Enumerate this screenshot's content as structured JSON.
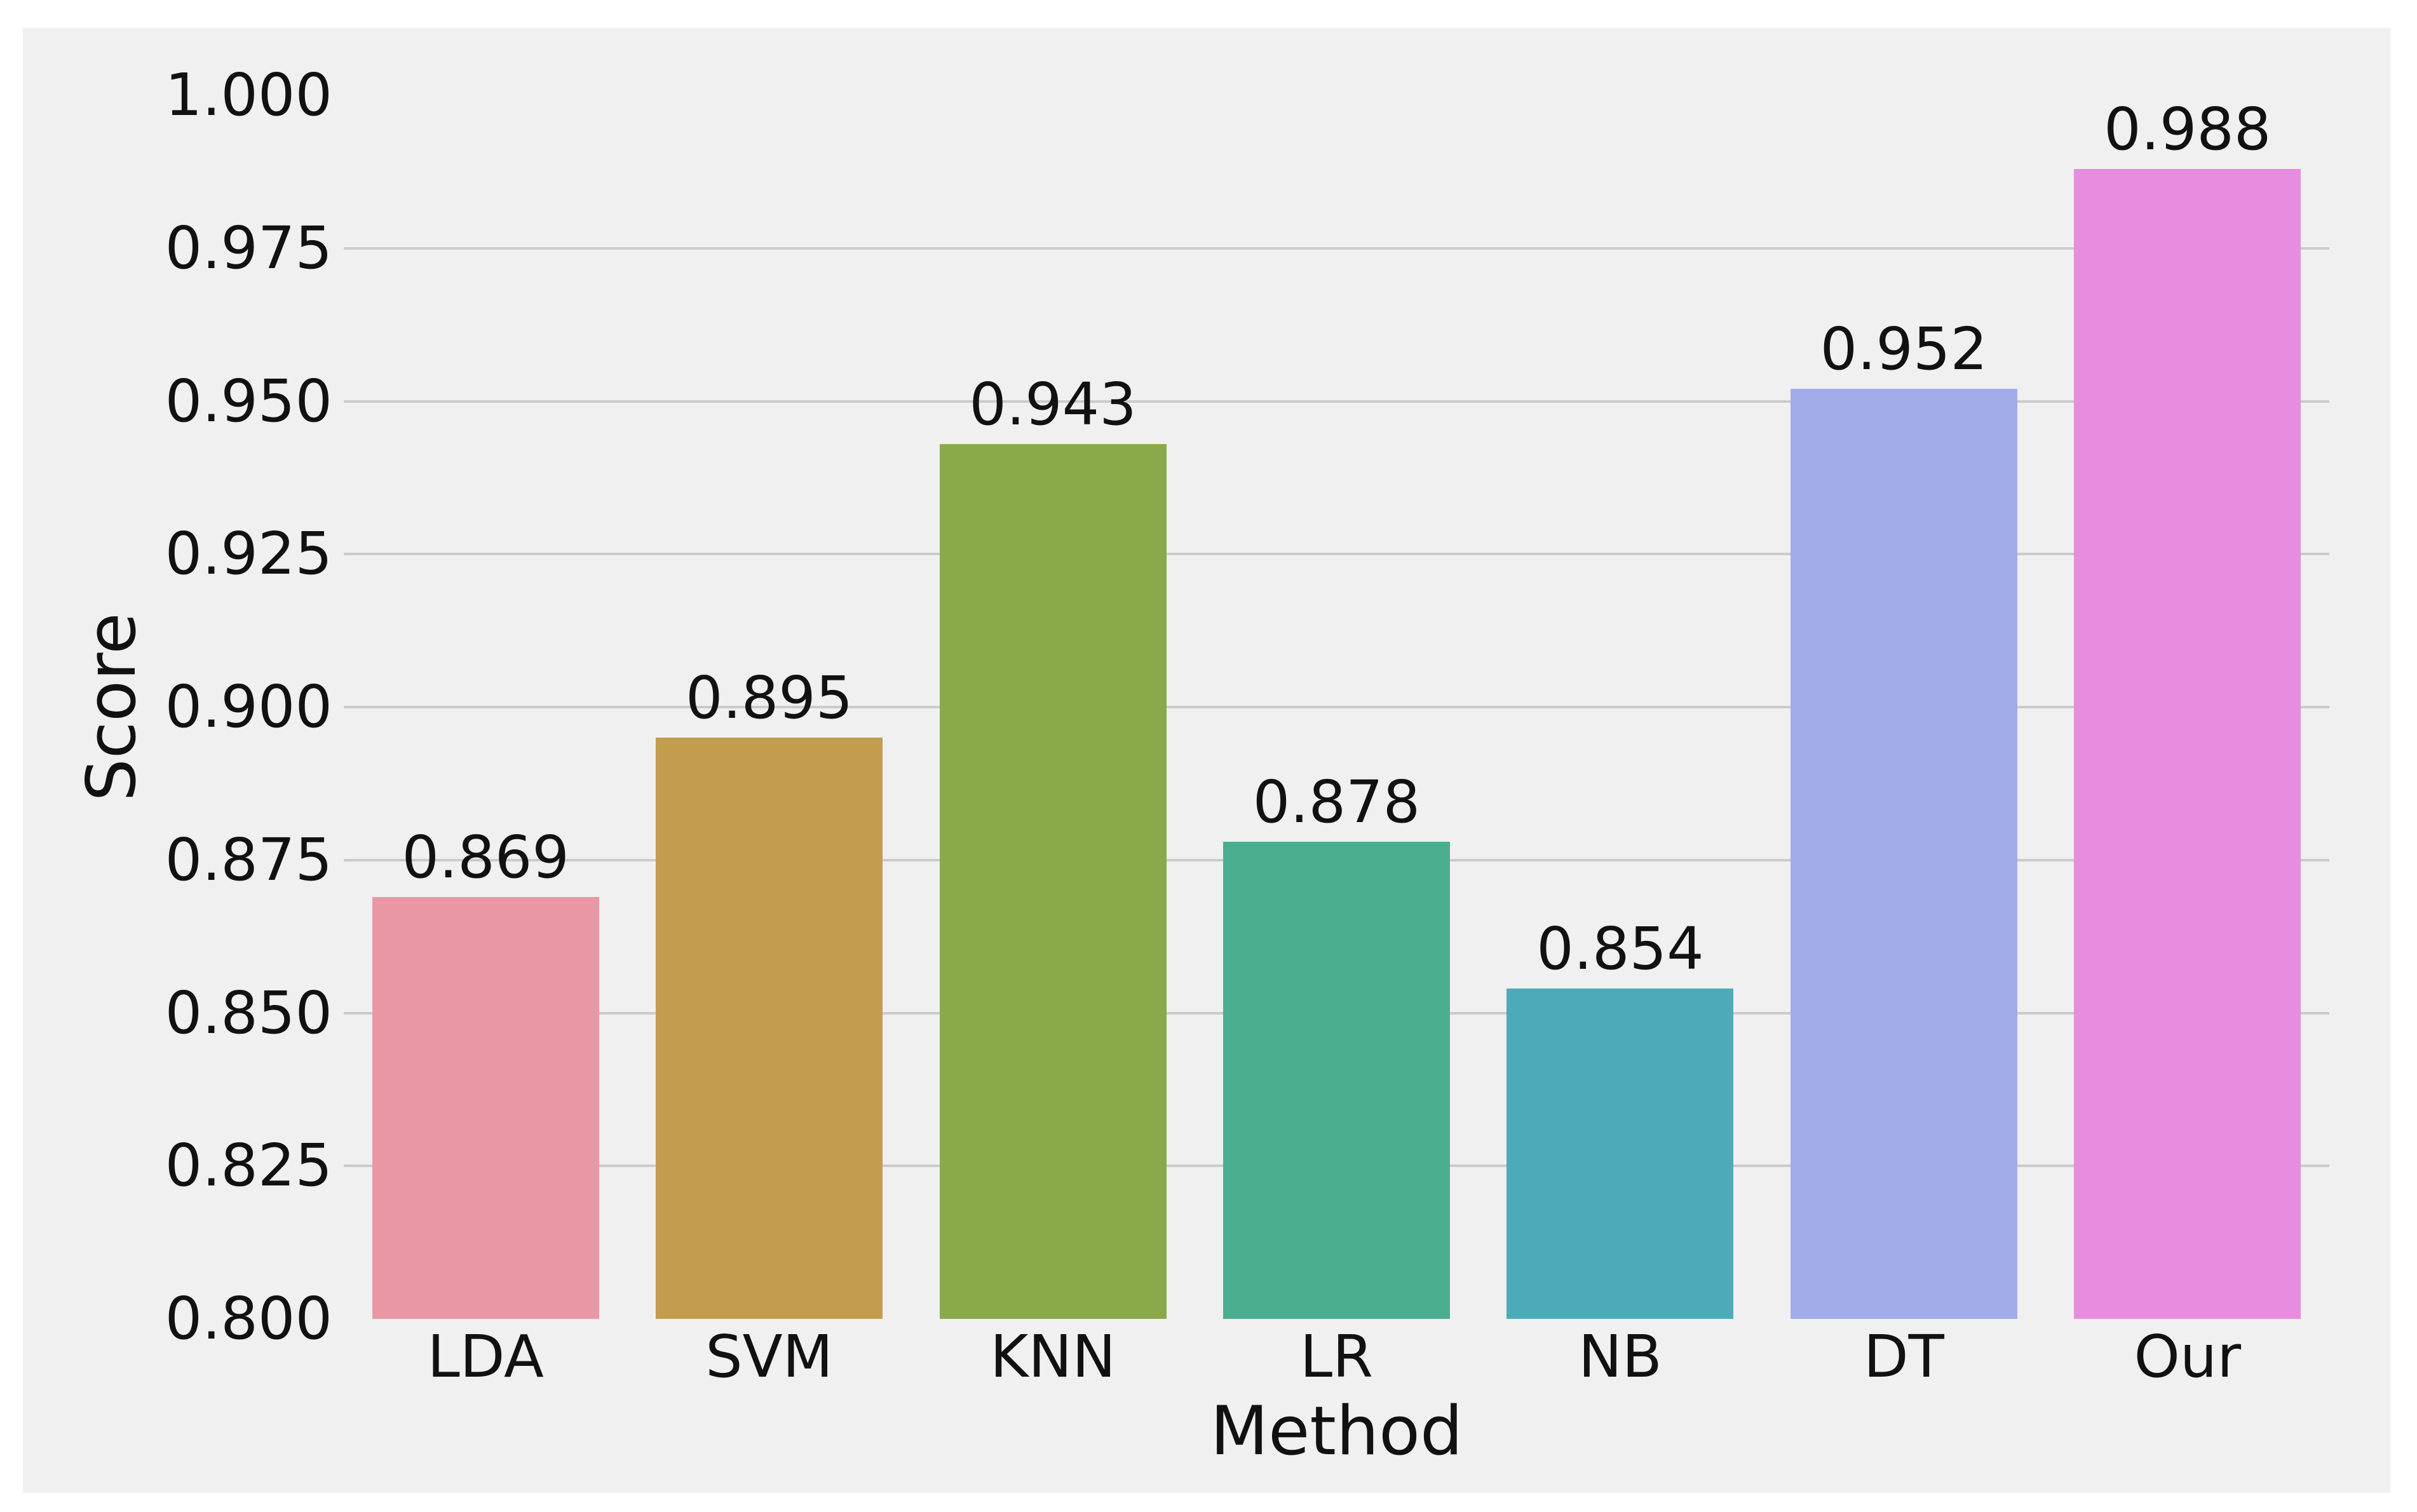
{
  "page": {
    "background": "#ffffff"
  },
  "figure": {
    "background": "#f0f0f0",
    "gridline_color": "#cbcbcb",
    "text_color": "#111111"
  },
  "chart_data": {
    "type": "bar",
    "title": "",
    "xlabel": "Method",
    "ylabel": "Score",
    "categories": [
      "LDA",
      "SVM",
      "KNN",
      "LR",
      "NB",
      "DT",
      "Our"
    ],
    "values": [
      0.869,
      0.895,
      0.943,
      0.878,
      0.854,
      0.952,
      0.988
    ],
    "value_labels": [
      "0.869",
      "0.895",
      "0.943",
      "0.878",
      "0.854",
      "0.952",
      "0.988"
    ],
    "bar_colors": [
      "#e997a4",
      "#c39c4d",
      "#8aa94a",
      "#4aad90",
      "#4dabb9",
      "#a2ace9",
      "#e88cdf"
    ],
    "ylim": [
      0.8,
      1.0
    ],
    "yticks": [
      "0.800",
      "0.825",
      "0.850",
      "0.875",
      "0.900",
      "0.925",
      "0.950",
      "0.975",
      "1.000"
    ],
    "bar_width_fraction": 0.8,
    "grid": "horizontal",
    "legend": "none"
  }
}
